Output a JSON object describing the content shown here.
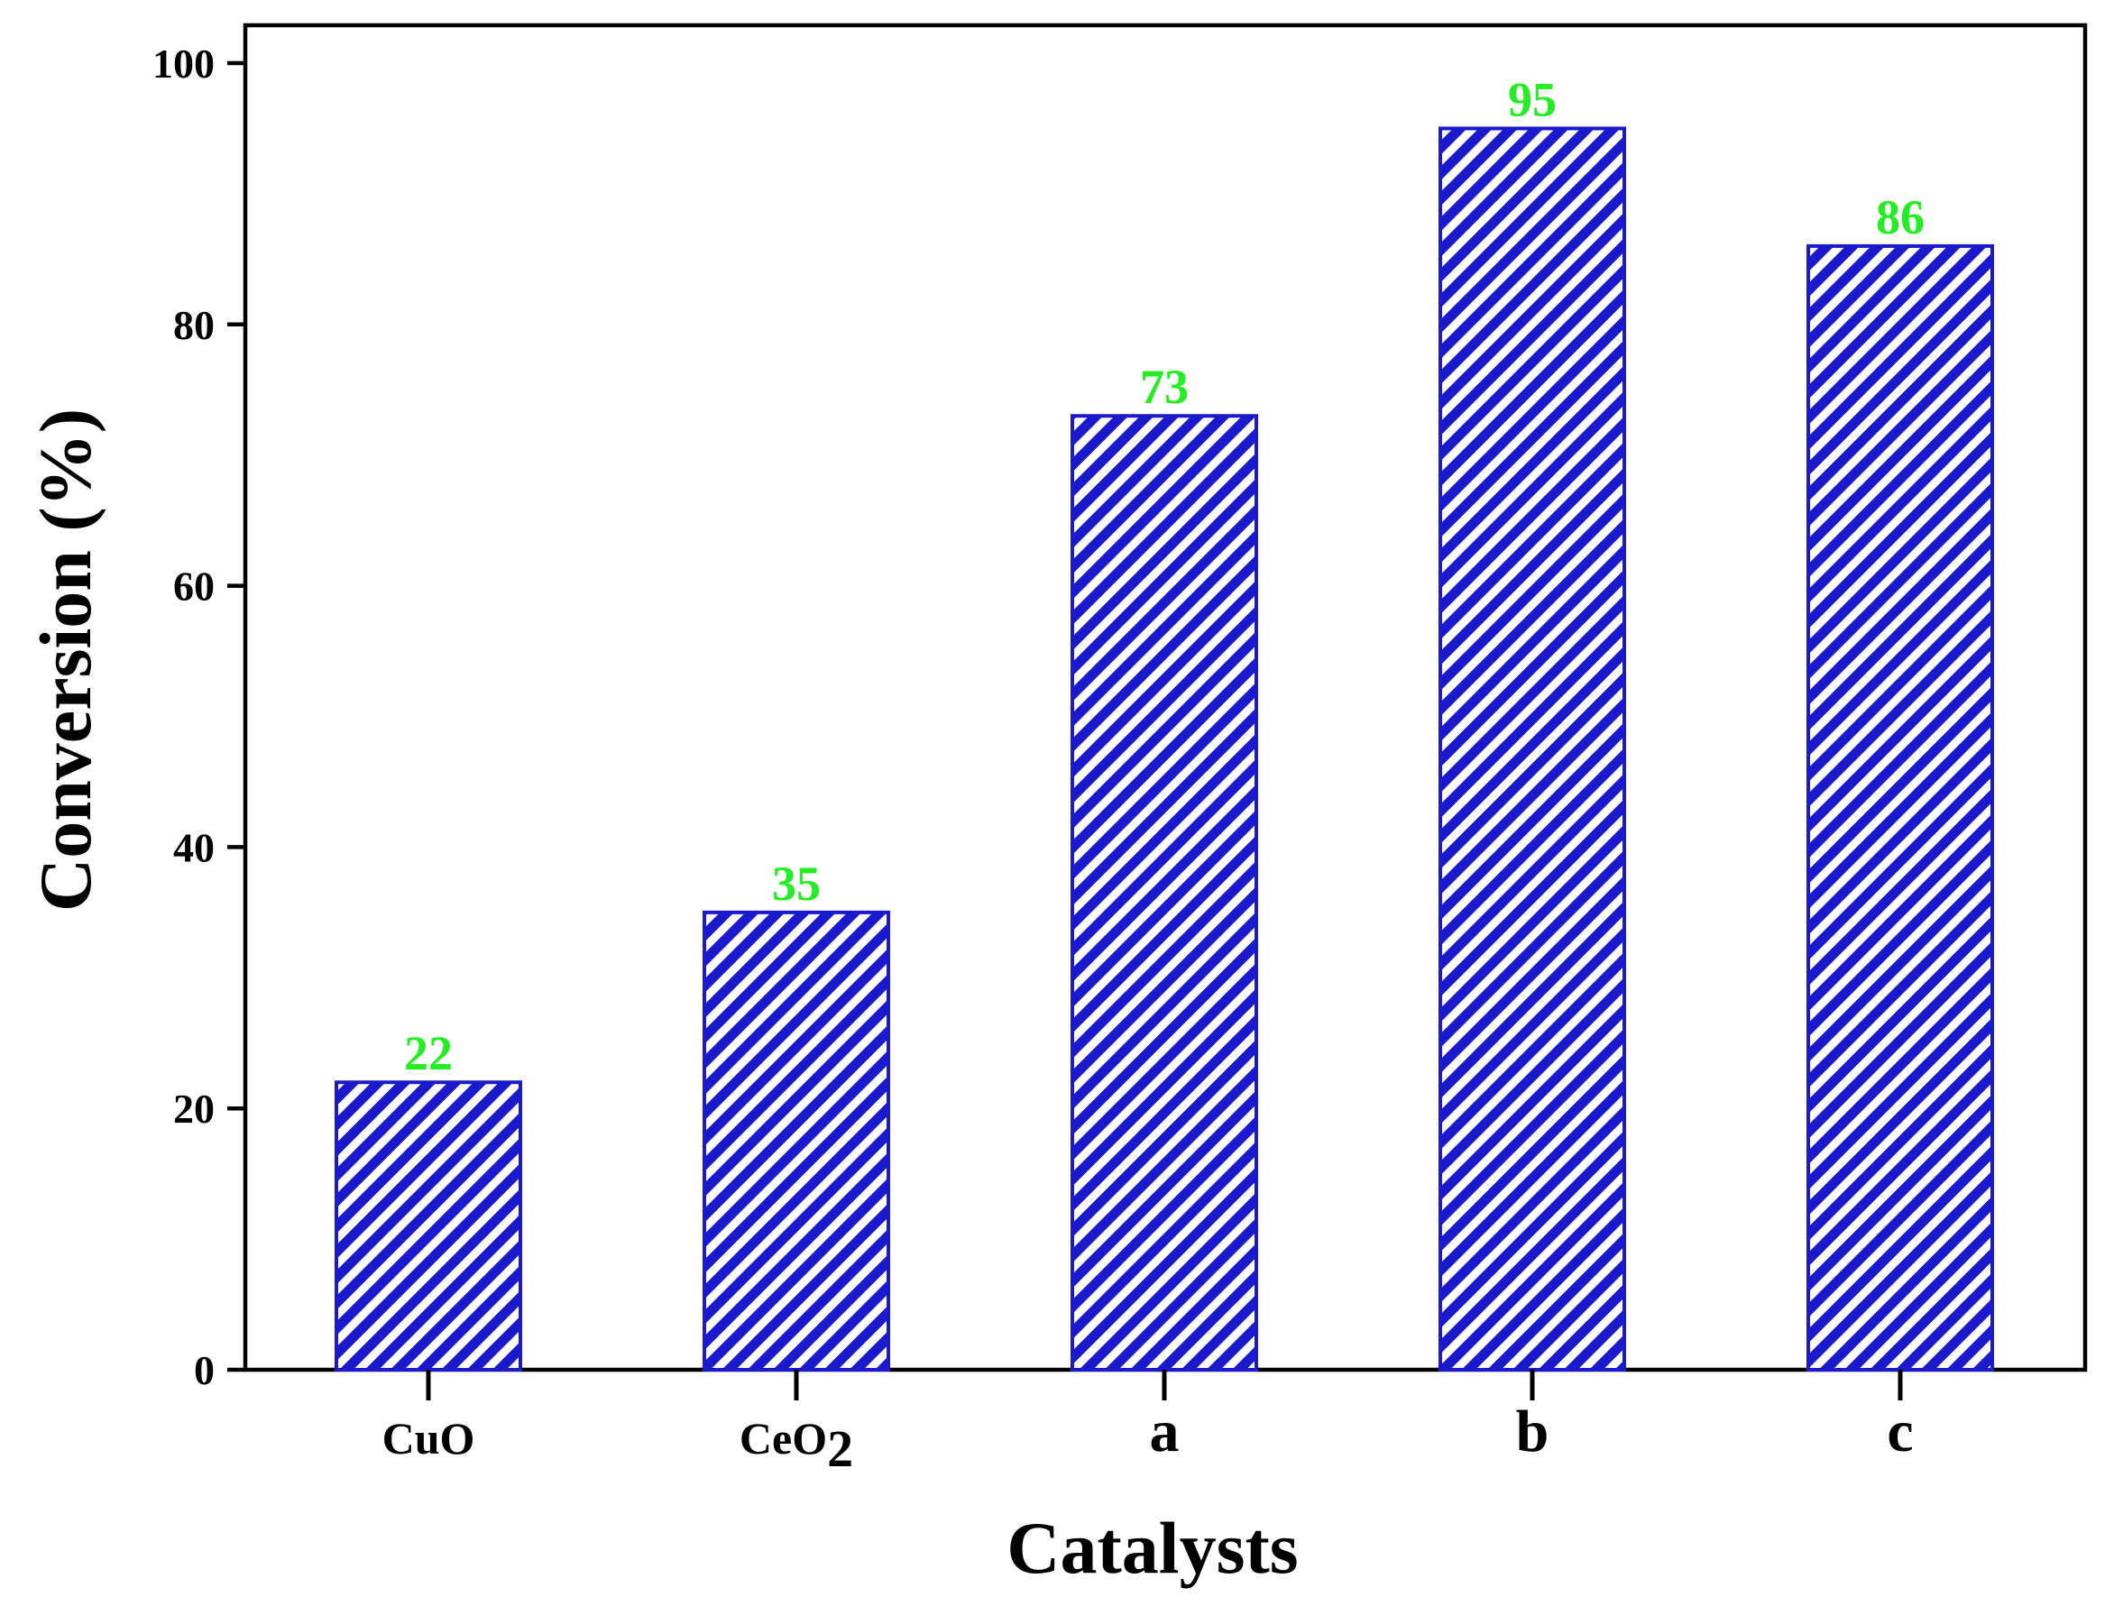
{
  "chart_data": {
    "type": "bar",
    "categories": [
      "CuO",
      "CeO2",
      "a",
      "b",
      "c"
    ],
    "category_display": [
      {
        "main": "CuO",
        "sub": ""
      },
      {
        "main": "CeO",
        "sub": "2"
      },
      {
        "main": "a",
        "sub": ""
      },
      {
        "main": "b",
        "sub": ""
      },
      {
        "main": "c",
        "sub": ""
      }
    ],
    "values": [
      22,
      35,
      73,
      95,
      86
    ],
    "value_labels": [
      "22",
      "35",
      "73",
      "95",
      "86"
    ],
    "xlabel": "Catalysts",
    "ylabel": "Conversion (%)",
    "ylim": [
      0,
      100
    ],
    "yticks": [
      0,
      20,
      40,
      60,
      80,
      100
    ],
    "ytick_labels": [
      "0",
      "20",
      "40",
      "60",
      "80",
      "100"
    ],
    "grid": false,
    "legend": "none",
    "colors": {
      "bar_stroke": "#1a1acc",
      "bar_hatch": "#1a1acc",
      "value_label": "#22ee22",
      "axis": "#000000"
    },
    "bar_fill_pattern": "diagonal-hatch"
  }
}
